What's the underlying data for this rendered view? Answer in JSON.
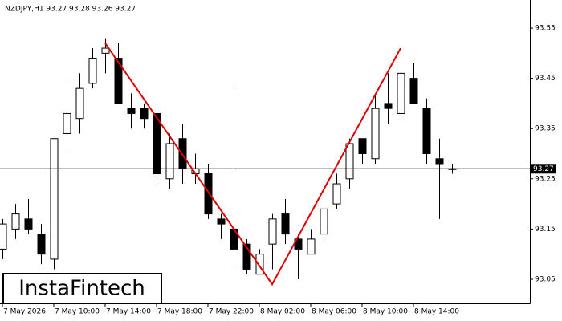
{
  "chart_data": {
    "type": "candlestick",
    "title": "NZDJPY,H1  93.27 93.28 93.26 93.27",
    "categories": [
      "7 May 2026",
      null,
      null,
      null,
      "7 May 10:00",
      null,
      null,
      null,
      "7 May 14:00",
      null,
      null,
      null,
      "7 May 18:00",
      null,
      null,
      null,
      "7 May 22:00",
      null,
      null,
      null,
      "8 May 02:00",
      null,
      null,
      null,
      "8 May 06:00",
      null,
      null,
      null,
      "8 May 10:00",
      null,
      null,
      null,
      "8 May 14:00",
      null,
      null,
      null
    ],
    "open": [
      93.11,
      93.15,
      93.17,
      93.14,
      93.09,
      93.34,
      93.37,
      93.44,
      93.5,
      93.49,
      93.39,
      93.39,
      93.38,
      93.25,
      93.33,
      93.26,
      93.26,
      93.17,
      93.15,
      93.12,
      93.06,
      93.12,
      93.18,
      93.13,
      93.1,
      93.14,
      93.2,
      93.25,
      93.33,
      93.29,
      93.4,
      93.38,
      93.45,
      93.39,
      93.29,
      93.27
    ],
    "high": [
      93.17,
      93.2,
      93.21,
      93.16,
      93.33,
      93.45,
      93.46,
      93.51,
      93.53,
      93.52,
      93.42,
      93.4,
      93.39,
      93.34,
      93.36,
      93.3,
      93.28,
      93.18,
      93.43,
      93.13,
      93.11,
      93.18,
      93.21,
      93.14,
      93.15,
      93.23,
      93.26,
      93.33,
      93.33,
      93.42,
      93.46,
      93.51,
      93.48,
      93.41,
      93.33,
      93.28
    ],
    "low": [
      93.09,
      93.13,
      93.14,
      93.08,
      93.07,
      93.3,
      93.34,
      93.43,
      93.46,
      93.4,
      93.35,
      93.35,
      93.24,
      93.23,
      93.24,
      93.24,
      93.17,
      93.13,
      93.07,
      93.06,
      93.06,
      93.07,
      93.12,
      93.05,
      93.1,
      93.13,
      93.19,
      93.23,
      93.28,
      93.28,
      93.36,
      93.37,
      93.4,
      93.28,
      93.17,
      93.26
    ],
    "close": [
      93.16,
      93.18,
      93.15,
      93.1,
      93.33,
      93.38,
      93.43,
      93.49,
      93.51,
      93.4,
      93.38,
      93.37,
      93.26,
      93.32,
      93.27,
      93.27,
      93.18,
      93.16,
      93.11,
      93.07,
      93.1,
      93.17,
      93.14,
      93.11,
      93.13,
      93.19,
      93.24,
      93.32,
      93.3,
      93.39,
      93.39,
      93.46,
      93.4,
      93.3,
      93.28,
      93.27
    ],
    "last_price": 93.27,
    "pattern": {
      "color": "#e00000",
      "x": [
        8,
        21,
        31
      ],
      "values": [
        93.52,
        93.04,
        93.51
      ]
    },
    "ylim": [
      93.002,
      93.606
    ],
    "yticks": [
      93.05,
      93.15,
      93.25,
      93.35,
      93.45,
      93.55
    ],
    "logo": "InstaFintech"
  }
}
